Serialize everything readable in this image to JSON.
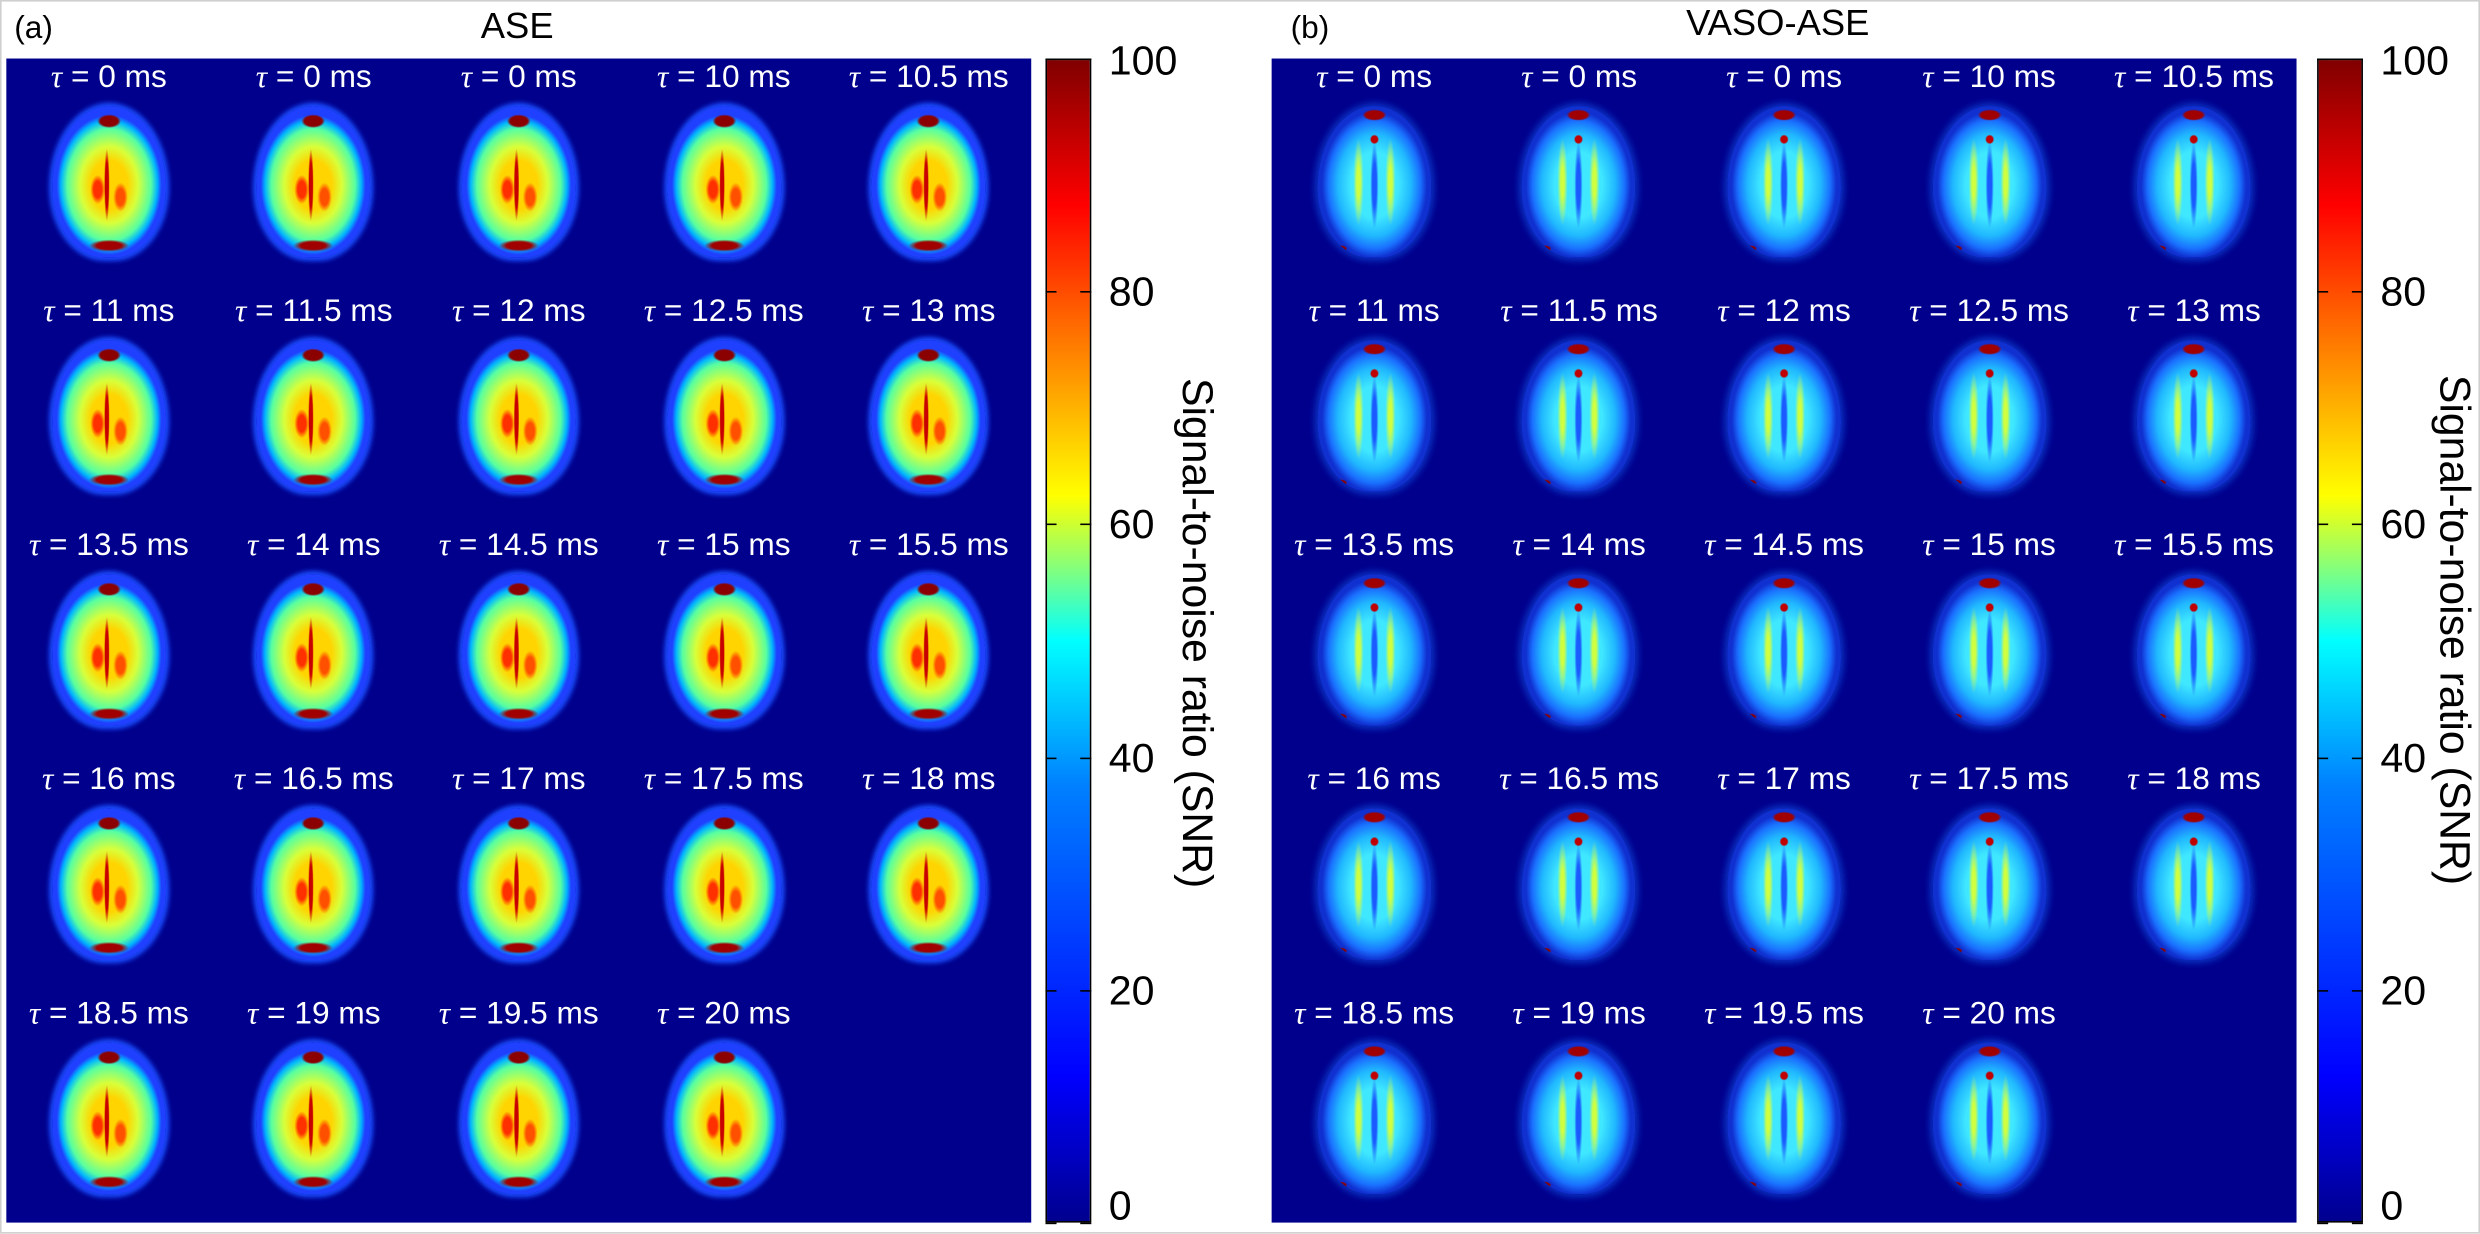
{
  "panels": [
    {
      "label": "(a)",
      "title": "ASE",
      "style": "ase",
      "slices": [
        "τ = 0 ms",
        "τ = 0 ms",
        "τ = 0 ms",
        "τ = 10 ms",
        "τ = 10.5 ms",
        "τ = 11 ms",
        "τ = 11.5 ms",
        "τ = 12 ms",
        "τ = 12.5 ms",
        "τ = 13 ms",
        "τ = 13.5 ms",
        "τ = 14 ms",
        "τ = 14.5 ms",
        "τ = 15 ms",
        "τ = 15.5 ms",
        "τ = 16 ms",
        "τ = 16.5 ms",
        "τ = 17 ms",
        "τ = 17.5 ms",
        "τ = 18 ms",
        "τ = 18.5 ms",
        "τ = 19 ms",
        "τ = 19.5 ms",
        "τ = 20 ms"
      ],
      "colorbar": {
        "label": "Signal-to-noise ratio (SNR)",
        "ticks": [
          "0",
          "20",
          "40",
          "60",
          "80",
          "100"
        ]
      }
    },
    {
      "label": "(b)",
      "title": "VASO-ASE",
      "style": "vaso",
      "slices": [
        "τ = 0 ms",
        "τ = 0 ms",
        "τ = 0 ms",
        "τ = 10 ms",
        "τ = 10.5 ms",
        "τ = 11 ms",
        "τ = 11.5 ms",
        "τ = 12 ms",
        "τ = 12.5 ms",
        "τ = 13 ms",
        "τ = 13.5 ms",
        "τ = 14 ms",
        "τ = 14.5 ms",
        "τ = 15 ms",
        "τ = 15.5 ms",
        "τ = 16 ms",
        "τ = 16.5 ms",
        "τ = 17 ms",
        "τ = 17.5 ms",
        "τ = 18 ms",
        "τ = 18.5 ms",
        "τ = 19 ms",
        "τ = 19.5 ms",
        "τ = 20 ms"
      ],
      "colorbar": {
        "label": "Signal-to-noise ratio (SNR)",
        "ticks": [
          "0",
          "20",
          "40",
          "60",
          "80",
          "100"
        ]
      }
    }
  ],
  "colormap": {
    "name": "jet",
    "min": 0,
    "max": 100,
    "stops": [
      "#00008f",
      "#0000ff",
      "#0080ff",
      "#00ffff",
      "#80ff80",
      "#ffff00",
      "#ff8000",
      "#ff0000",
      "#800000"
    ]
  },
  "background_color": "#00008c"
}
